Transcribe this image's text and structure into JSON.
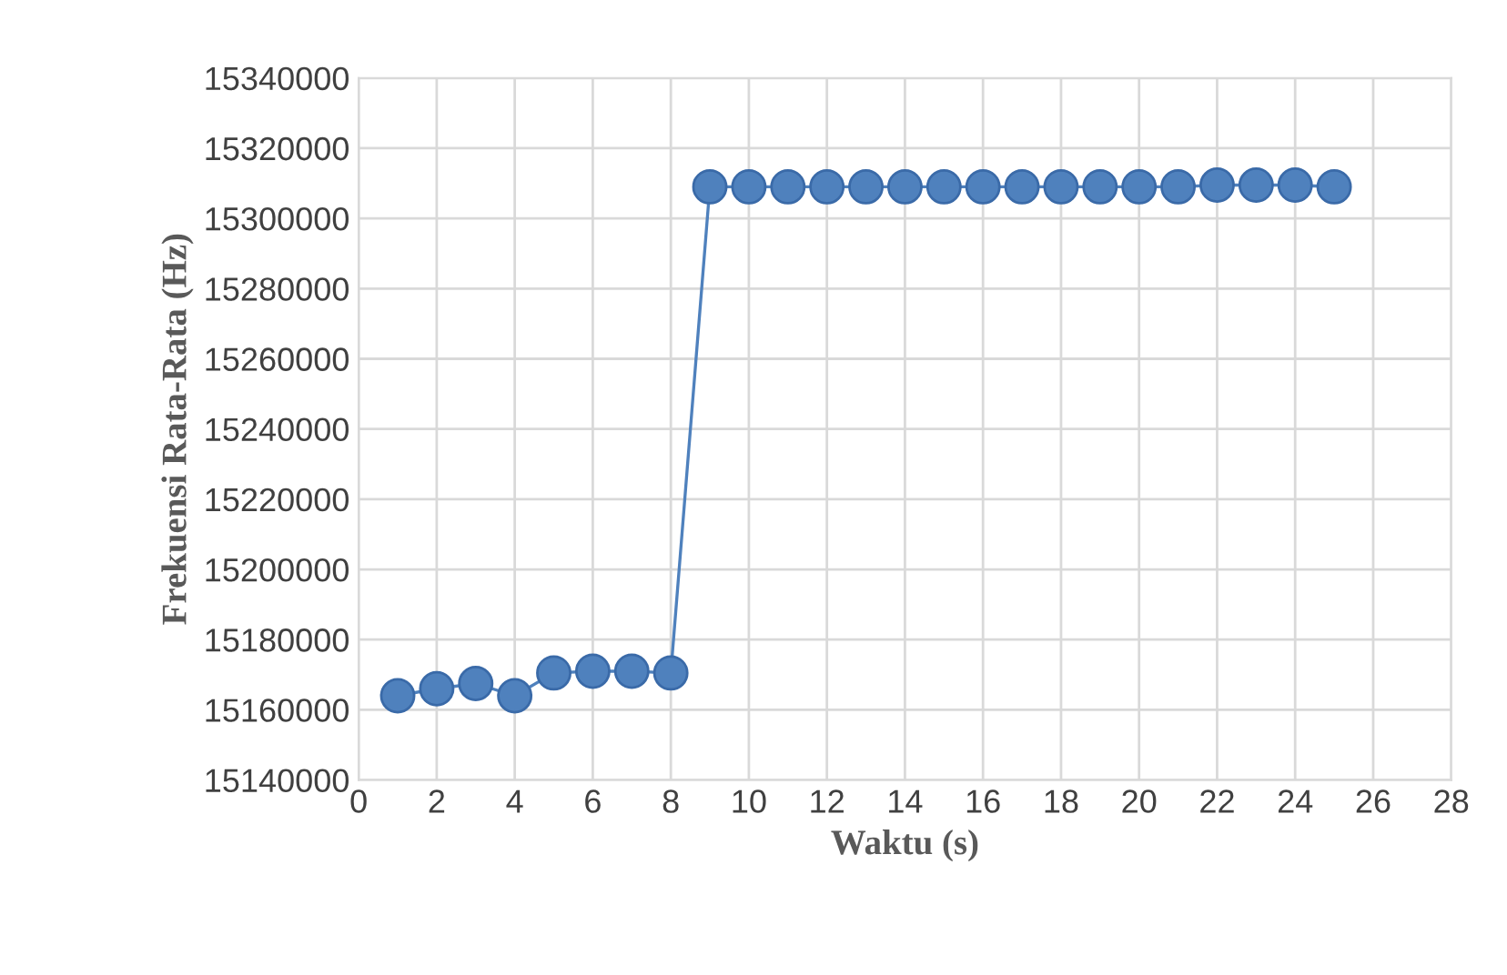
{
  "chart_data": {
    "type": "line",
    "xlabel": "Waktu (s)",
    "ylabel": "Frekuensi Rata-Rata (Hz)",
    "x": [
      1,
      2,
      3,
      4,
      5,
      6,
      7,
      8,
      9,
      10,
      11,
      12,
      13,
      14,
      15,
      16,
      17,
      18,
      19,
      20,
      21,
      22,
      23,
      24,
      25
    ],
    "series": [
      {
        "color": "#4f81bd",
        "values": [
          15164000,
          15166000,
          15167500,
          15164000,
          15170500,
          15171000,
          15171000,
          15170500,
          15309000,
          15309000,
          15309000,
          15309000,
          15309000,
          15309000,
          15309000,
          15309000,
          15309000,
          15309000,
          15309000,
          15309000,
          15309000,
          15309500,
          15309500,
          15309500,
          15309000
        ]
      }
    ],
    "xlim": [
      0,
      28
    ],
    "xticks": [
      0,
      2,
      4,
      6,
      8,
      10,
      12,
      14,
      16,
      18,
      20,
      22,
      24,
      26,
      28
    ],
    "ylim": [
      15140000,
      15340000
    ],
    "yticks": [
      15140000,
      15160000,
      15180000,
      15200000,
      15220000,
      15240000,
      15260000,
      15280000,
      15300000,
      15320000,
      15340000
    ],
    "grid": true,
    "marker": "circle",
    "line_style": "solid",
    "legend": false
  }
}
